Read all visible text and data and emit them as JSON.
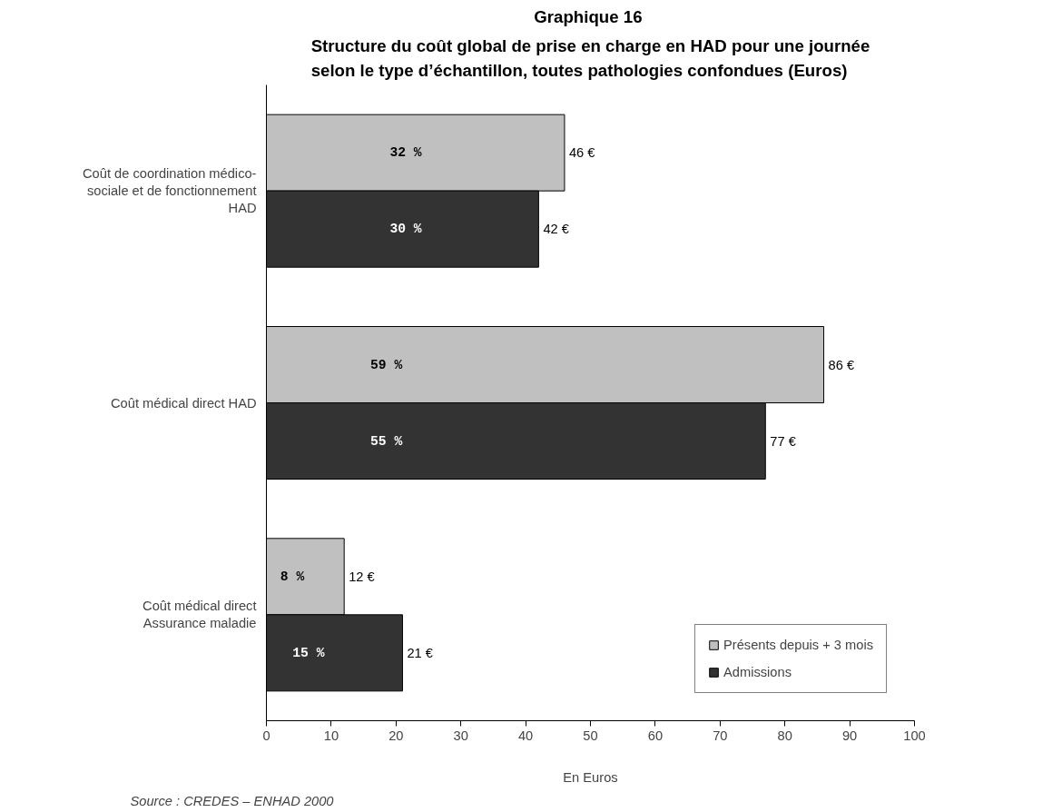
{
  "chart_data": {
    "type": "bar",
    "orientation": "horizontal",
    "title": "Graphique  16",
    "subtitle": "Structure du coût global de prise en charge en HAD pour une journée selon le type d’échantillon, toutes pathologies confondues (Euros)",
    "xlabel": "En Euros",
    "categories": [
      "Coût de coordination médico-sociale et de fonctionnement HAD",
      "Coût médical direct HAD",
      "Coût médical direct Assurance maladie"
    ],
    "series": [
      {
        "name": "Présents depuis + 3 mois",
        "color": "#c0c0c0",
        "values": [
          46,
          86,
          12
        ],
        "value_labels": [
          "46 €",
          "86 €",
          "12 €"
        ]
      },
      {
        "name": "Admissions",
        "color": "#333333",
        "values": [
          42,
          77,
          21
        ],
        "value_labels": [
          "42 €",
          "77 €",
          "21 €"
        ]
      }
    ],
    "xlim": [
      0,
      100
    ],
    "xticks": [
      0,
      10,
      20,
      30,
      40,
      50,
      60,
      70,
      80,
      90,
      100
    ],
    "grid": false,
    "legend": "bottom right",
    "annotations": [
      {
        "text": "32 %",
        "x": 21.5,
        "y": "Coût de coordination médico-sociale et de fonctionnement HAD"
      },
      {
        "text": "30 %",
        "x": 21.5,
        "y": "Coût de coordination médico-sociale et de fonctionnement HAD"
      },
      {
        "text": "59 %",
        "x": 18.5,
        "y": "Coût médical direct HAD"
      },
      {
        "text": "55 %",
        "x": 18.5,
        "y": "Coût médical direct HAD"
      },
      {
        "text": "8 %",
        "x": 4,
        "y": "Coût médical direct Assurance maladie"
      },
      {
        "text": "15 %",
        "x": 6.5,
        "y": "Coût médical direct Assurance maladie"
      },
      "Source : CREDES – ENHAD 2000"
    ]
  }
}
